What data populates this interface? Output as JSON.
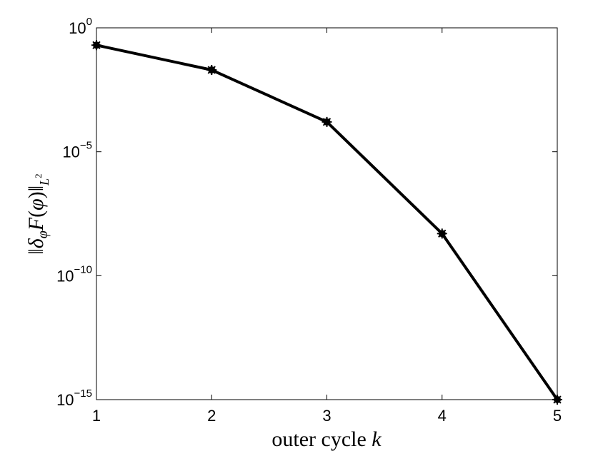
{
  "chart_data": {
    "type": "line",
    "x": [
      1,
      2,
      3,
      4,
      5
    ],
    "series": [
      {
        "values": [
          0.2,
          0.02,
          0.00016,
          5e-09,
          1e-15
        ],
        "color": "#000000",
        "marker": "star"
      }
    ],
    "xlabel_text": "outer cycle ",
    "xlabel_var": "k",
    "ylabel": "||δφF(φ)||L²",
    "xlim": [
      1,
      5
    ],
    "ylim": [
      1e-15,
      1
    ],
    "yscale": "log",
    "xticks": [
      "1",
      "2",
      "3",
      "4",
      "5"
    ],
    "yticks": [
      {
        "base": "10",
        "exp": "0",
        "value": 1
      },
      {
        "base": "10",
        "exp": "−5",
        "value": 1e-05
      },
      {
        "base": "10",
        "exp": "−10",
        "value": 1e-10
      },
      {
        "base": "10",
        "exp": "−15",
        "value": 1e-15
      }
    ],
    "grid": false
  }
}
